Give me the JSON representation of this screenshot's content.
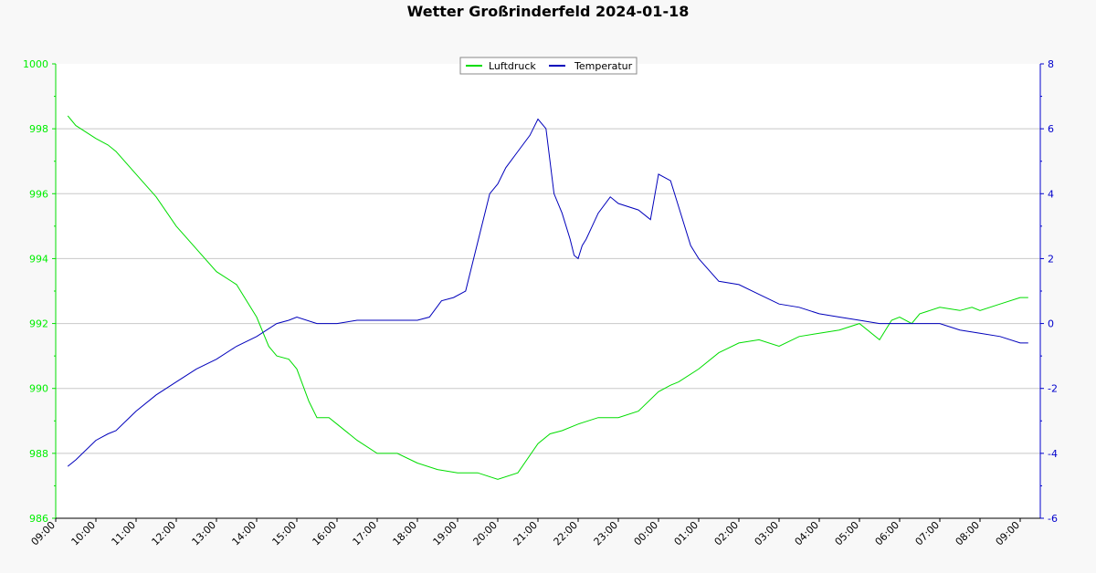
{
  "chart_data": {
    "type": "line",
    "title": "Wetter Großrinderfeld 2024-01-18",
    "legend_position": "top-center",
    "grid": true,
    "colors": {
      "Luftdruck": "#00dd00",
      "Temperatur": "#0000bb"
    },
    "x_ticks": [
      "09:00",
      "10:00",
      "11:00",
      "12:00",
      "13:00",
      "14:00",
      "15:00",
      "16:00",
      "17:00",
      "18:00",
      "19:00",
      "20:00",
      "21:00",
      "22:00",
      "23:00",
      "00:00",
      "01:00",
      "02:00",
      "03:00",
      "04:00",
      "05:00",
      "06:00",
      "07:00",
      "08:00",
      "09:00"
    ],
    "x_range_hours": [
      0,
      24.5
    ],
    "y_left": {
      "ticks": [
        "986",
        "988",
        "990",
        "992",
        "994",
        "996",
        "998",
        "1000"
      ],
      "range": [
        986,
        1000
      ]
    },
    "y_right": {
      "ticks": [
        "-6",
        "-4",
        "-2",
        "0",
        "2",
        "4",
        "6",
        "8"
      ],
      "range": [
        -6,
        8
      ]
    },
    "series": [
      {
        "name": "Luftdruck",
        "axis": "left",
        "x": [
          0.3,
          0.5,
          1.0,
          1.3,
          1.5,
          2.0,
          2.5,
          3.0,
          3.5,
          4.0,
          4.5,
          5.0,
          5.3,
          5.5,
          5.8,
          6.0,
          6.3,
          6.5,
          6.8,
          7.0,
          7.5,
          8.0,
          8.5,
          9.0,
          9.5,
          10.0,
          10.5,
          11.0,
          11.5,
          12.0,
          12.3,
          12.6,
          13.0,
          13.5,
          14.0,
          14.5,
          15.0,
          15.3,
          15.5,
          16.0,
          16.5,
          17.0,
          17.5,
          18.0,
          18.5,
          19.0,
          19.5,
          20.0,
          20.5,
          20.8,
          21.0,
          21.3,
          21.5,
          22.0,
          22.5,
          22.8,
          23.0,
          23.5,
          24.0,
          24.2
        ],
        "values": [
          998.4,
          998.1,
          997.7,
          997.5,
          997.3,
          996.6,
          995.9,
          995.0,
          994.3,
          993.6,
          993.2,
          992.2,
          991.3,
          991.0,
          990.9,
          990.6,
          989.6,
          989.1,
          989.1,
          988.9,
          988.4,
          988.0,
          988.0,
          987.7,
          987.5,
          987.4,
          987.4,
          987.2,
          987.4,
          988.3,
          988.6,
          988.7,
          988.9,
          989.1,
          989.1,
          989.3,
          989.9,
          990.1,
          990.2,
          990.6,
          991.1,
          991.4,
          991.5,
          991.3,
          991.6,
          991.7,
          991.8,
          992.0,
          991.5,
          992.1,
          992.2,
          992.0,
          992.3,
          992.5,
          992.4,
          992.5,
          992.4,
          992.6,
          992.8,
          992.8
        ]
      },
      {
        "name": "Temperatur",
        "axis": "right",
        "x": [
          0.3,
          0.5,
          1.0,
          1.3,
          1.5,
          2.0,
          2.5,
          3.0,
          3.5,
          4.0,
          4.5,
          5.0,
          5.5,
          5.8,
          6.0,
          6.5,
          7.0,
          7.5,
          8.0,
          8.5,
          9.0,
          9.3,
          9.6,
          9.9,
          10.2,
          10.5,
          10.7,
          10.8,
          11.0,
          11.2,
          11.5,
          11.8,
          12.0,
          12.2,
          12.4,
          12.6,
          12.8,
          12.9,
          13.0,
          13.1,
          13.2,
          13.5,
          13.8,
          14.0,
          14.5,
          14.8,
          15.0,
          15.3,
          15.5,
          15.8,
          16.0,
          16.5,
          17.0,
          17.5,
          18.0,
          18.5,
          19.0,
          19.5,
          20.0,
          20.5,
          21.0,
          21.5,
          22.0,
          22.5,
          23.0,
          23.5,
          24.0,
          24.2
        ],
        "values": [
          -4.4,
          -4.2,
          -3.6,
          -3.4,
          -3.3,
          -2.7,
          -2.2,
          -1.8,
          -1.4,
          -1.1,
          -0.7,
          -0.4,
          0.0,
          0.1,
          0.2,
          0.0,
          0.0,
          0.1,
          0.1,
          0.1,
          0.1,
          0.2,
          0.7,
          0.8,
          1.0,
          2.5,
          3.5,
          4.0,
          4.3,
          4.8,
          5.3,
          5.8,
          6.3,
          6.0,
          4.0,
          3.4,
          2.6,
          2.1,
          2.0,
          2.4,
          2.6,
          3.4,
          3.9,
          3.7,
          3.5,
          3.2,
          4.6,
          4.4,
          3.6,
          2.4,
          2.0,
          1.3,
          1.2,
          0.9,
          0.6,
          0.5,
          0.3,
          0.2,
          0.1,
          0.0,
          0.0,
          0.0,
          0.0,
          -0.2,
          -0.3,
          -0.4,
          -0.6,
          -0.6
        ]
      }
    ]
  }
}
